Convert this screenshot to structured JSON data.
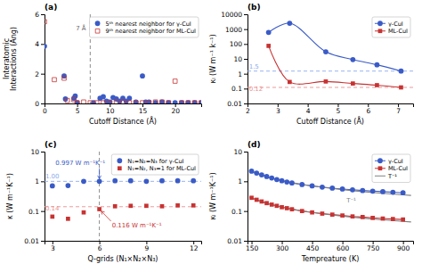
{
  "chart_data": [
    {
      "type": "scatter",
      "title": "(a)",
      "xlabel": "Cutoff Distance (Å)",
      "ylabel": "Interatomic\nInteractions (Ang)",
      "xlim": [
        0,
        24
      ],
      "ylim": [
        0,
        6
      ],
      "xticks": [
        0,
        5,
        10,
        15,
        20
      ],
      "yticks": [
        0,
        2,
        4,
        6
      ],
      "legend": "upper right",
      "series": [
        {
          "name": "5ᵗʰ nearest neighbor for γ-CuI",
          "color": "#3a5bc7",
          "marker": "circle",
          "x": [
            0.0,
            3.0,
            3.2,
            4.5,
            4.7,
            5.0,
            7.5,
            8.5,
            9.0,
            9.5,
            10.0,
            10.5,
            11.0,
            11.5,
            12.0,
            12.5,
            13.0,
            14.0,
            15.0,
            15.5,
            16.0,
            17.0,
            18.0,
            19.0,
            20.0,
            21.0,
            22.0,
            23.0,
            24.0
          ],
          "values": [
            3.85,
            1.85,
            0.3,
            0.35,
            0.5,
            0.05,
            0.05,
            0.35,
            0.45,
            0.15,
            0.1,
            0.4,
            0.3,
            0.15,
            0.35,
            0.15,
            0.35,
            0.1,
            1.85,
            0.1,
            0.1,
            0.05,
            0.1,
            0.05,
            0.05,
            0.05,
            0.05,
            0.05,
            0.05
          ]
        },
        {
          "name": "9ᵗʰ nearest neighbor for ML-CuI",
          "color": "#c83232",
          "marker": "square-open",
          "x": [
            0.0,
            1.5,
            3.0,
            3.5,
            4.5,
            5.0,
            6.0,
            7.0,
            8.0,
            9.0,
            10.0,
            11.0,
            12.0,
            13.0,
            14.0,
            15.0,
            16.0,
            17.0,
            18.0,
            19.0,
            20.0,
            21.0,
            22.0,
            23.0,
            24.0
          ],
          "values": [
            5.5,
            1.6,
            1.7,
            0.2,
            0.25,
            0.05,
            0.1,
            0.05,
            0.05,
            0.05,
            0.05,
            0.1,
            0.1,
            0.05,
            0.05,
            0.05,
            0.05,
            0.1,
            0.1,
            0.05,
            1.5,
            0.05,
            0.05,
            0.05,
            0.05
          ]
        }
      ],
      "reference_lines": [
        {
          "axis": "x",
          "value": 7,
          "color": "gray",
          "line_style": "dashed"
        }
      ],
      "annotations": [
        {
          "text": "7 Å",
          "x": 4.8,
          "y": 4.9,
          "color": "#696969"
        }
      ]
    },
    {
      "type": "line",
      "title": "(b)",
      "log": "y",
      "xlabel": "Cutoff Distance (Å)",
      "ylabel": "κₗ (W m⁻¹ k⁻¹)",
      "xlim": [
        2,
        7.5
      ],
      "ylim": [
        0.01,
        10000
      ],
      "xticks": [
        2,
        3,
        4,
        5,
        6,
        7
      ],
      "yticks": [
        0.01,
        0.1,
        1,
        10,
        100,
        1000,
        10000
      ],
      "legend": "upper right",
      "series": [
        {
          "name": "γ-CuI",
          "color": "#3a5bc7",
          "marker": "circle",
          "line_style": "smooth",
          "x": [
            2.7,
            3.4,
            4.6,
            5.5,
            6.3,
            7.1
          ],
          "values": [
            600.0,
            2500.0,
            30.0,
            9.0,
            4.0,
            1.5
          ]
        },
        {
          "name": "ML-CuI",
          "color": "#c83232",
          "marker": "square",
          "line_style": "smooth",
          "x": [
            2.7,
            3.4,
            4.6,
            5.5,
            6.3,
            7.1
          ],
          "values": [
            75.0,
            0.28,
            0.3,
            0.22,
            0.17,
            0.12
          ]
        }
      ],
      "reference_lines": [
        {
          "axis": "y",
          "value": 1.5,
          "color": "#8aaaee",
          "line_style": "dashed"
        },
        {
          "axis": "y",
          "value": 0.12,
          "color": "#e89090",
          "line_style": "dashed"
        }
      ],
      "annotations": [
        {
          "text": "1.5",
          "x": 2.05,
          "y": 2.2,
          "color": "#8aaaee"
        },
        {
          "text": "0.12",
          "x": 2.05,
          "y": 0.072,
          "color": "#e89090"
        }
      ]
    },
    {
      "type": "scatter",
      "title": "(c)",
      "log": "y",
      "xlabel": "Q-grids (N₁×N₂×N₃)",
      "ylabel": "κ (W m⁻¹K⁻¹)",
      "xlim": [
        2.5,
        12.5
      ],
      "ylim": [
        0.01,
        10
      ],
      "xticks": [
        3,
        6,
        9,
        12
      ],
      "yticks": [
        0.01,
        0.1,
        1,
        10
      ],
      "legend": "upper right",
      "series": [
        {
          "name": "N₁=N₂=N₃ for γ-CuI",
          "color": "#3a5bc7",
          "marker": "circle",
          "x": [
            3,
            4,
            5,
            6,
            7,
            8,
            9,
            10,
            11,
            12
          ],
          "values": [
            0.7,
            0.72,
            1.0,
            1.0,
            1.05,
            1.05,
            1.0,
            1.05,
            1.05,
            1.05
          ]
        },
        {
          "name": "N₁=N₂, N₃=1 for ML-CuI",
          "color": "#c83232",
          "marker": "square",
          "x": [
            3,
            4,
            5,
            6,
            7,
            8,
            9,
            10,
            11,
            12
          ],
          "values": [
            0.065,
            0.055,
            0.09,
            0.116,
            0.145,
            0.15,
            0.15,
            0.145,
            0.155,
            0.155
          ]
        }
      ],
      "reference_lines": [
        {
          "axis": "x",
          "value": 6,
          "color": "gray",
          "line_style": "dashed"
        },
        {
          "axis": "y",
          "value": 1.0,
          "color": "#8aaaee",
          "line_style": "dashed"
        },
        {
          "axis": "y",
          "value": 0.14,
          "color": "#e89090",
          "line_style": "dashed"
        }
      ],
      "annotations": [
        {
          "text": "1.00",
          "x": 2.55,
          "y": 1.25,
          "color": "#8aaaee"
        },
        {
          "text": "0.14",
          "x": 2.55,
          "y": 0.107,
          "color": "#e89090"
        },
        {
          "text": "0.997 W m⁻¹K⁻¹",
          "x": 3.2,
          "y": 3.5,
          "color": "#3a5bc7",
          "arrow_to": [
            6,
            1.0
          ]
        },
        {
          "text": "0.116 W m⁻¹K⁻¹",
          "x": 6.8,
          "y": 0.028,
          "color": "#c83232",
          "arrow_to": [
            6,
            0.116
          ]
        }
      ]
    },
    {
      "type": "line",
      "title": "(d)",
      "log": "y",
      "xlabel": "Tempreature (K)",
      "ylabel": "κₗ (W m⁻¹K⁻¹)",
      "xlim": [
        130,
        950
      ],
      "ylim": [
        0.01,
        10
      ],
      "xticks": [
        150,
        300,
        450,
        600,
        750,
        900
      ],
      "yticks": [
        0.01,
        0.1,
        1,
        10
      ],
      "legend": "upper right",
      "series": [
        {
          "name": "γ-CuI",
          "color": "#3a5bc7",
          "marker": "circle",
          "x": [
            150,
            175,
            200,
            225,
            250,
            275,
            300,
            325,
            350,
            400,
            450,
            500,
            550,
            600,
            650,
            700,
            750,
            800,
            850,
            900
          ],
          "values": [
            2.2,
            1.9,
            1.65,
            1.45,
            1.3,
            1.15,
            1.05,
            0.95,
            0.88,
            0.78,
            0.7,
            0.64,
            0.59,
            0.55,
            0.52,
            0.49,
            0.47,
            0.45,
            0.43,
            0.41
          ]
        },
        {
          "name": "ML-CuI",
          "color": "#c83232",
          "marker": "square",
          "x": [
            150,
            175,
            200,
            225,
            250,
            275,
            300,
            325,
            350,
            400,
            450,
            500,
            550,
            600,
            650,
            700,
            750,
            800,
            850,
            900
          ],
          "values": [
            0.28,
            0.24,
            0.21,
            0.185,
            0.165,
            0.15,
            0.135,
            0.125,
            0.115,
            0.1,
            0.09,
            0.082,
            0.076,
            0.071,
            0.066,
            0.063,
            0.059,
            0.056,
            0.054,
            0.052
          ]
        },
        {
          "name": "T⁻¹",
          "color": "gray",
          "x": [
            140,
            175,
            225,
            300,
            400,
            500,
            600,
            700,
            800,
            900,
            940
          ],
          "values": [
            2.25,
            1.8,
            1.4,
            1.05,
            0.7875,
            0.63,
            0.525,
            0.45,
            0.39375,
            0.35,
            0.3351
          ]
        },
        {
          "color": "gray",
          "x": [
            140,
            175,
            225,
            300,
            400,
            500,
            600,
            700,
            800,
            900,
            940
          ],
          "values": [
            0.2893,
            0.2314,
            0.18,
            0.135,
            0.10125,
            0.081,
            0.0675,
            0.05786,
            0.050625,
            0.045,
            0.04309
          ]
        }
      ],
      "annotations": [
        {
          "text": "T⁻¹",
          "x": 620,
          "y": 0.19,
          "color": "gray"
        }
      ]
    }
  ]
}
